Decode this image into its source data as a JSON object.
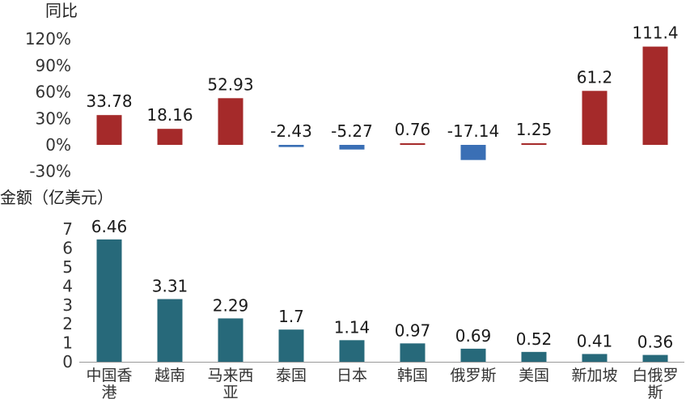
{
  "chart_data": [
    {
      "type": "bar",
      "ylabel": "同比",
      "ylim": [
        -30,
        130
      ],
      "yticks": [
        "120%",
        "90%",
        "60%",
        "30%",
        "0%",
        "-30%"
      ],
      "yticks_values": [
        120,
        90,
        60,
        30,
        0,
        -30
      ],
      "categories": [
        "中国香港",
        "越南",
        "马来西亚",
        "泰国",
        "日本",
        "韩国",
        "俄罗斯",
        "美国",
        "新加坡",
        "白俄罗斯"
      ],
      "values": [
        33.78,
        18.16,
        52.93,
        -2.43,
        -5.27,
        0.76,
        -17.14,
        1.25,
        61.2,
        111.4
      ],
      "value_labels": [
        "33.78",
        "18.16",
        "52.93",
        "-2.43",
        "-5.27",
        "0.76",
        "-17.14",
        "1.25",
        "61.2",
        "111.4"
      ],
      "colors": {
        "positive": "#a52a2a",
        "negative": "#3a6fb5"
      }
    },
    {
      "type": "bar",
      "ylabel": "金额（亿美元）",
      "ylim": [
        0,
        7.2
      ],
      "yticks": [
        "7",
        "6",
        "5",
        "4",
        "3",
        "2",
        "1",
        "0"
      ],
      "yticks_values": [
        7,
        6,
        5,
        4,
        3,
        2,
        1,
        0
      ],
      "categories": [
        "中国香港",
        "越南",
        "马来西亚",
        "泰国",
        "日本",
        "韩国",
        "俄罗斯",
        "美国",
        "新加坡",
        "白俄罗斯"
      ],
      "category_lines": [
        [
          "中国香",
          "港"
        ],
        [
          "越南"
        ],
        [
          "马来西",
          "亚"
        ],
        [
          "泰国"
        ],
        [
          "日本"
        ],
        [
          "韩国"
        ],
        [
          "俄罗斯"
        ],
        [
          "美国"
        ],
        [
          "新加坡"
        ],
        [
          "白俄罗",
          "斯"
        ]
      ],
      "values": [
        6.46,
        3.31,
        2.29,
        1.7,
        1.14,
        0.97,
        0.69,
        0.52,
        0.41,
        0.36
      ],
      "value_labels": [
        "6.46",
        "3.31",
        "2.29",
        "1.7",
        "1.14",
        "0.97",
        "0.69",
        "0.52",
        "0.41",
        "0.36"
      ],
      "colors": {
        "bar": "#27697a",
        "axis": "#999999"
      }
    }
  ]
}
